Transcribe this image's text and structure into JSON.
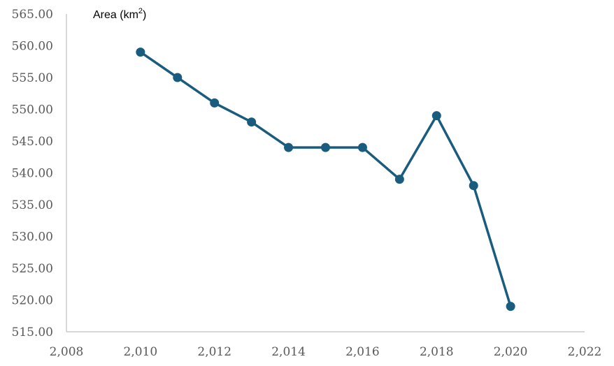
{
  "chart_data": {
    "type": "scatter",
    "title": "",
    "ylabel": "Area (km",
    "ylabel_sup": "2",
    "ylabel_suffix": ")",
    "xlabel": "",
    "xlim": [
      2008,
      2022
    ],
    "ylim": [
      515,
      565
    ],
    "x_ticks": [
      2008,
      2010,
      2012,
      2014,
      2016,
      2018,
      2020,
      2022
    ],
    "x_tick_labels": [
      "2,008",
      "2,010",
      "2,012",
      "2,014",
      "2,016",
      "2,018",
      "2,020",
      "2,022"
    ],
    "y_ticks": [
      515,
      520,
      525,
      530,
      535,
      540,
      545,
      550,
      555,
      560,
      565
    ],
    "y_tick_labels": [
      "515.00",
      "520.00",
      "525.00",
      "530.00",
      "535.00",
      "540.00",
      "545.00",
      "550.00",
      "555.00",
      "560.00",
      "565.00"
    ],
    "grid": false,
    "legend": "none",
    "series": [
      {
        "color": "#1a5c7e",
        "x": [
          2010,
          2011,
          2012,
          2013,
          2014,
          2015,
          2016,
          2017,
          2018,
          2019,
          2020
        ],
        "y": [
          559,
          555,
          551,
          548,
          544,
          544,
          544,
          539,
          549,
          538,
          519
        ]
      }
    ]
  }
}
